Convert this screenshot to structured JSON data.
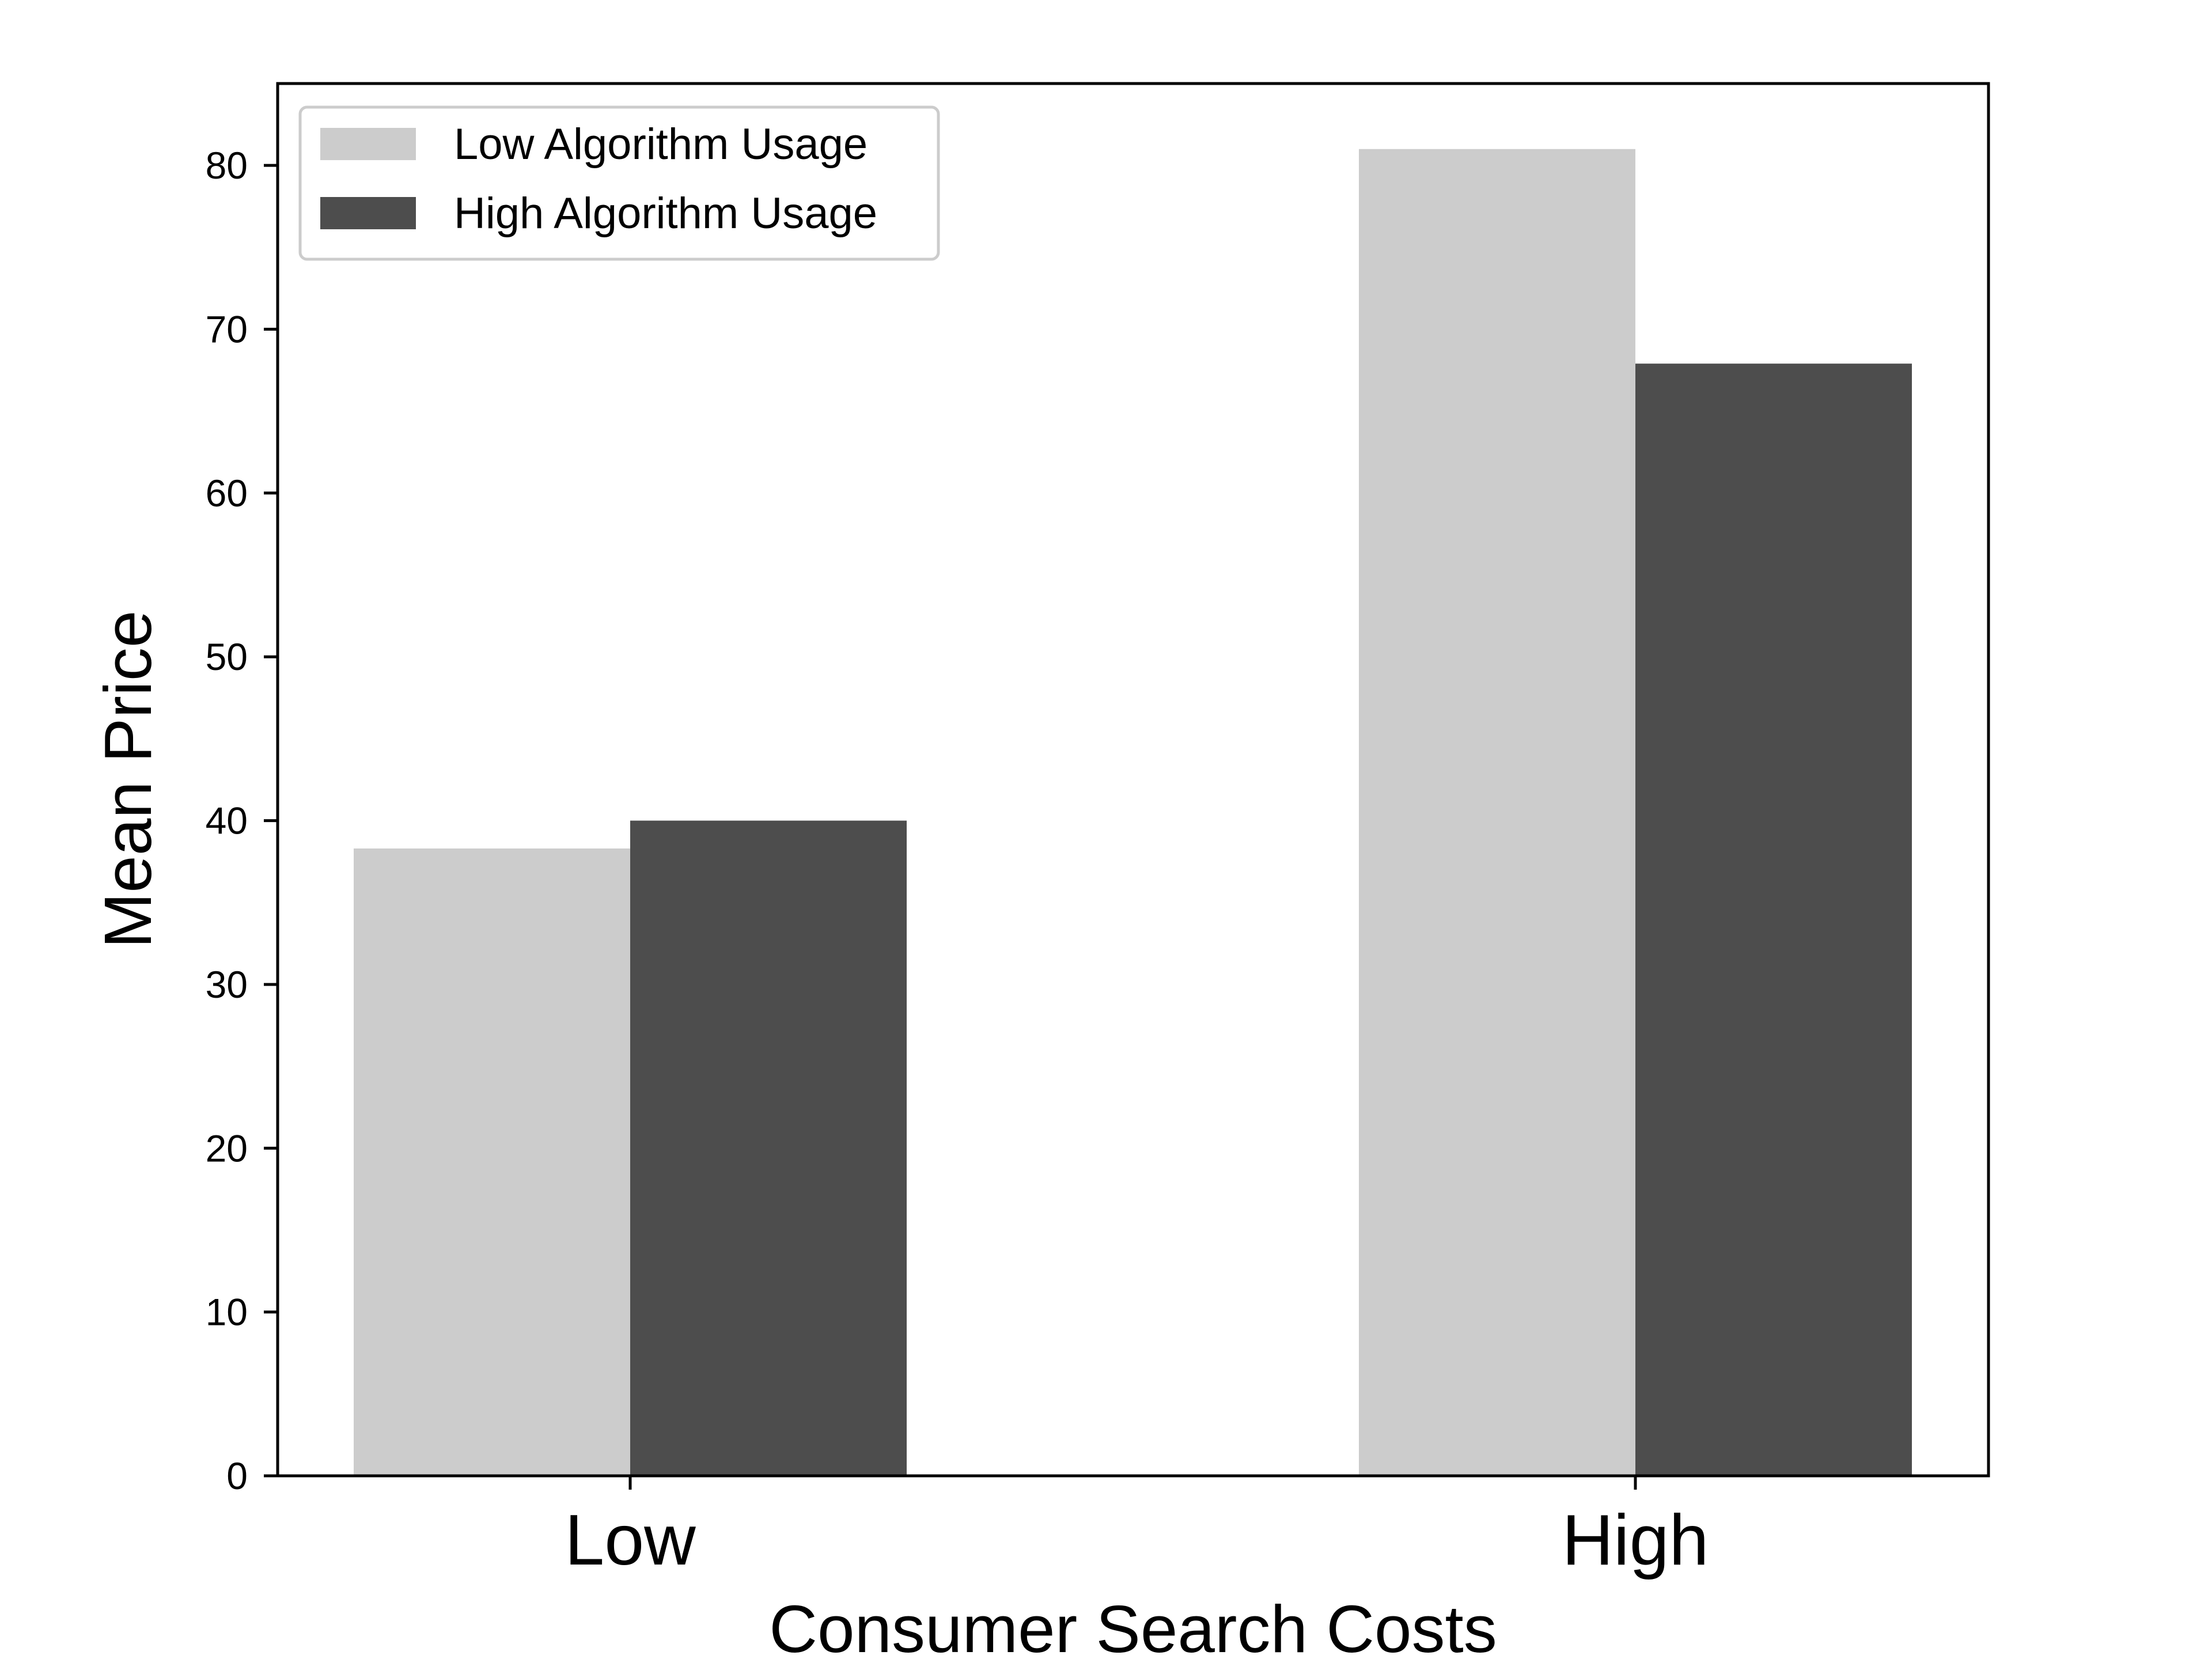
{
  "chart_data": {
    "type": "bar",
    "categories": [
      "Low",
      "High"
    ],
    "series": [
      {
        "name": "Low Algorithm Usage",
        "values": [
          38.3,
          81.0
        ],
        "color": "#cccccc"
      },
      {
        "name": "High Algorithm Usage",
        "values": [
          40.0,
          67.9
        ],
        "color": "#4d4d4d"
      }
    ],
    "title": "",
    "xlabel": "Consumer Search Costs",
    "ylabel": "Mean Price",
    "ylim": [
      0,
      85
    ],
    "yticks": [
      "0",
      "10",
      "20",
      "30",
      "40",
      "50",
      "60",
      "70",
      "80"
    ],
    "grid": false,
    "legend_position": "top-left"
  }
}
